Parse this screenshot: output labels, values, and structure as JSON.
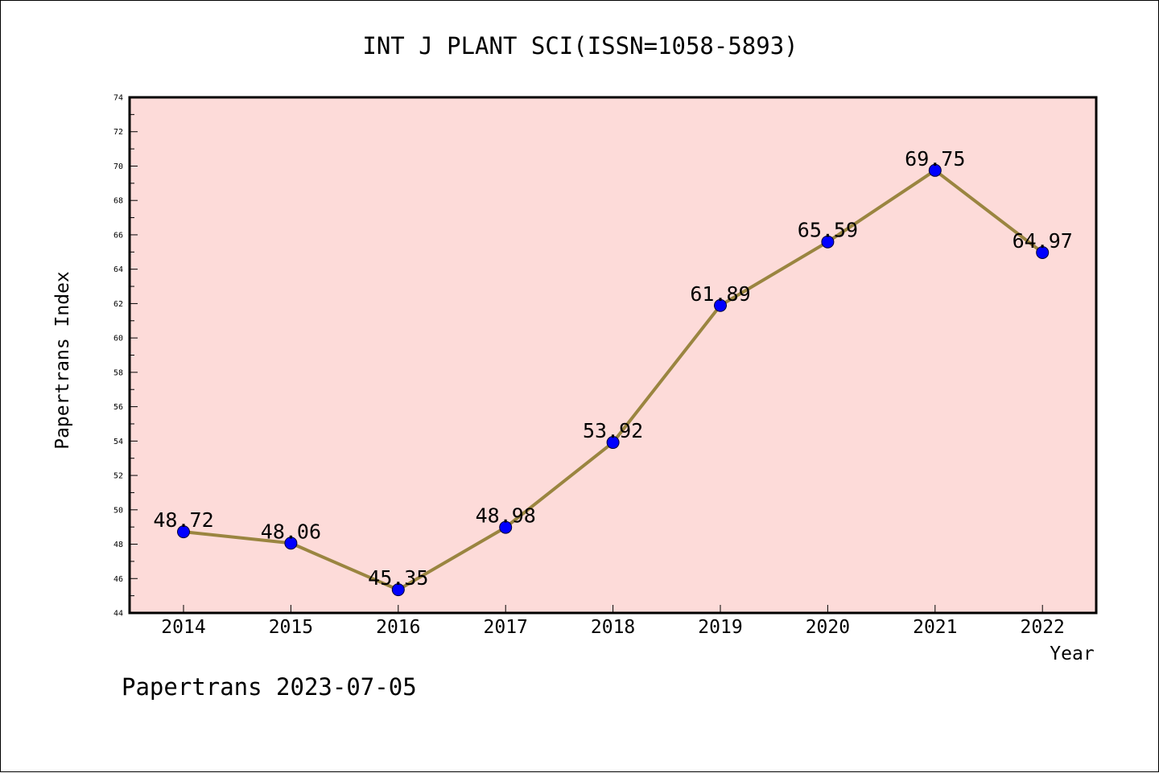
{
  "chart_data": {
    "type": "line",
    "title": "INT J PLANT SCI(ISSN=1058-5893)",
    "xlabel": "Year",
    "ylabel": "Papertrans Index",
    "categories": [
      "2014",
      "2015",
      "2016",
      "2017",
      "2018",
      "2019",
      "2020",
      "2021",
      "2022"
    ],
    "series": [
      {
        "values": [
          48.72,
          48.06,
          45.35,
          48.98,
          53.92,
          61.89,
          65.59,
          69.75,
          64.97
        ],
        "labels": [
          "48.72",
          "48.06",
          "45.35",
          "48.98",
          "53.92",
          "61.89",
          "65.59",
          "69.75",
          "64.97"
        ]
      }
    ],
    "ylim": [
      44,
      74
    ],
    "yticks": [
      "44",
      "46",
      "48",
      "50",
      "52",
      "54",
      "56",
      "58",
      "60",
      "62",
      "64",
      "66",
      "68",
      "70",
      "72",
      "74"
    ],
    "grid": false,
    "colors": {
      "plot_background": "#fddbd9",
      "line": "#9a8540",
      "marker": "#0000ff"
    }
  },
  "footer": "Papertrans 2023-07-05"
}
